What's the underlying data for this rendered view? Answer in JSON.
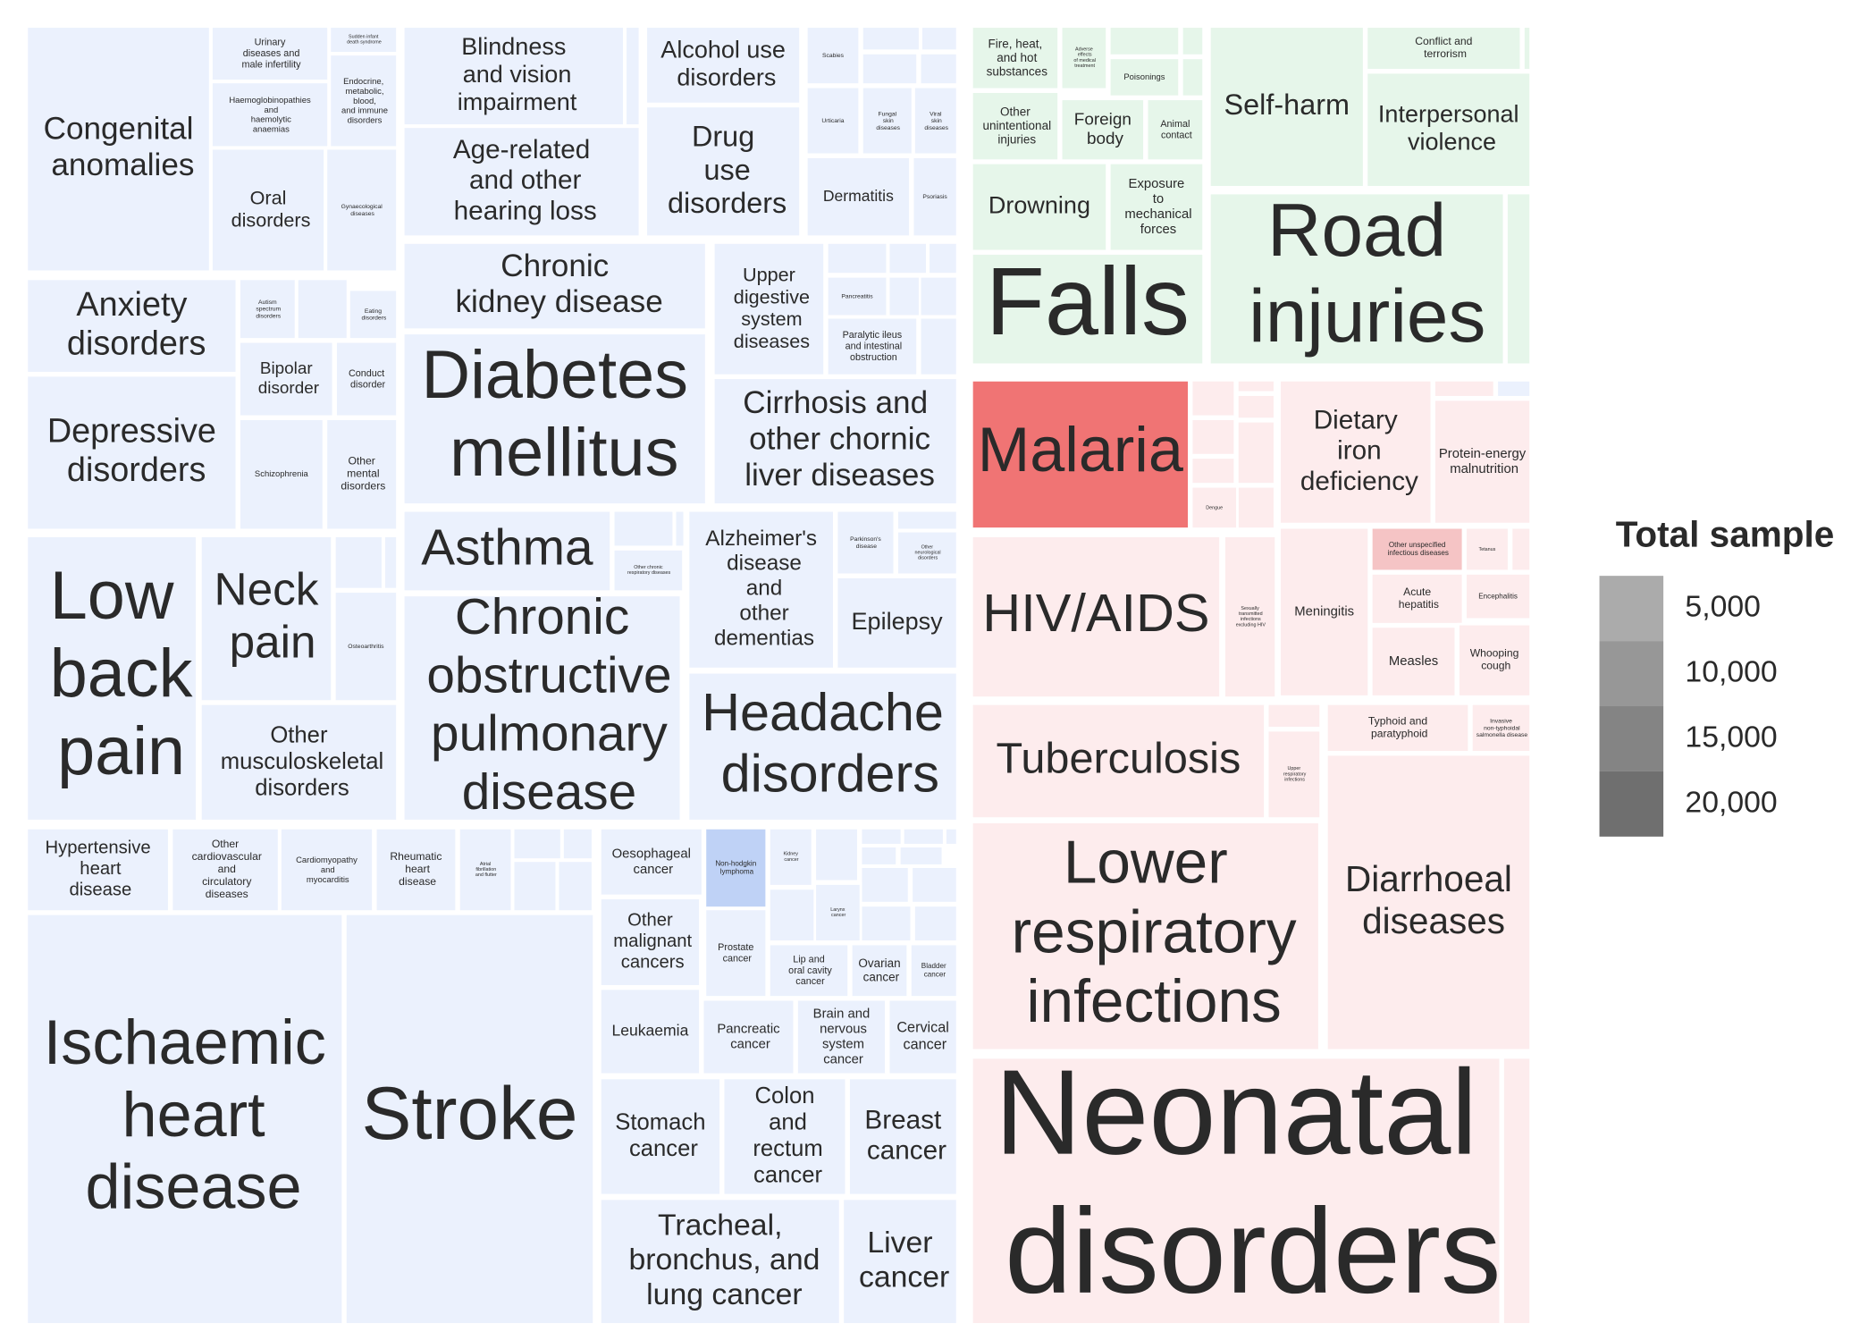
{
  "chart_data": {
    "type": "treemap",
    "palette": [
      "#ebf1fd",
      "#e6f6ea",
      "#fdeced"
    ],
    "cells": [
      {
        "label": "Congenital anomalies",
        "color": "#ebf1fd"
      },
      {
        "label": "Urinary diseases and male infertility",
        "color": "#ebf1fd"
      },
      {
        "label": "Sudden infant death syndrome",
        "color": "#ebf1fd"
      },
      {
        "label": "Haemoglobinopathies and haemolytic anaemias",
        "color": "#ebf1fd"
      },
      {
        "label": "Endocrine, metabolic, blood, and immune disorders",
        "color": "#ebf1fd"
      },
      {
        "label": "Oral disorders",
        "color": "#ebf1fd"
      },
      {
        "label": "Gynaecological diseases",
        "color": "#ebf1fd"
      },
      {
        "label": "Blindness and vision impairment",
        "color": "#ebf1fd"
      },
      {
        "label": "Age-related and other hearing loss",
        "color": "#ebf1fd"
      },
      {
        "label": "Alcohol use disorders",
        "color": "#ebf1fd"
      },
      {
        "label": "Drug use disorders",
        "color": "#ebf1fd"
      },
      {
        "label": "Scabies",
        "color": "#ebf1fd"
      },
      {
        "label": "Urticaria",
        "color": "#ebf1fd"
      },
      {
        "label": "Fungal skin diseases",
        "color": "#ebf1fd"
      },
      {
        "label": "Viral skin diseases",
        "color": "#ebf1fd"
      },
      {
        "label": "Dermatitis",
        "color": "#ebf1fd"
      },
      {
        "label": "Psoriasis",
        "color": "#ebf1fd"
      },
      {
        "label": "Anxiety disorders",
        "color": "#ebf1fd"
      },
      {
        "label": "Autism spectrum disorders",
        "color": "#ebf1fd"
      },
      {
        "label": "Eating disorders",
        "color": "#ebf1fd"
      },
      {
        "label": "Bipolar disorder",
        "color": "#ebf1fd"
      },
      {
        "label": "Conduct disorder",
        "color": "#ebf1fd"
      },
      {
        "label": "Depressive disorders",
        "color": "#ebf1fd"
      },
      {
        "label": "Schizophrenia",
        "color": "#ebf1fd"
      },
      {
        "label": "Other mental disorders",
        "color": "#ebf1fd"
      },
      {
        "label": "Chronic kidney disease",
        "color": "#ebf1fd"
      },
      {
        "label": "Diabetes mellitus",
        "color": "#ebf1fd"
      },
      {
        "label": "Upper digestive system diseases",
        "color": "#ebf1fd"
      },
      {
        "label": "Pancreatitis",
        "color": "#ebf1fd"
      },
      {
        "label": "Paralytic ileus and intestinal obstruction",
        "color": "#ebf1fd"
      },
      {
        "label": "Cirrhosis and other chornic liver diseases",
        "color": "#ebf1fd"
      },
      {
        "label": "Low back pain",
        "color": "#ebf1fd"
      },
      {
        "label": "Neck pain",
        "color": "#ebf1fd"
      },
      {
        "label": "Osteoarthritis",
        "color": "#ebf1fd"
      },
      {
        "label": "Other musculoskeletal disorders",
        "color": "#ebf1fd"
      },
      {
        "label": "Asthma",
        "color": "#ebf1fd"
      },
      {
        "label": "Other chronic respiratory diseases",
        "color": "#ebf1fd"
      },
      {
        "label": "Chronic obstructive pulmonary disease",
        "color": "#ebf1fd"
      },
      {
        "label": "Alzheimer's disease and other dementias",
        "color": "#ebf1fd"
      },
      {
        "label": "Parkinson's disease",
        "color": "#ebf1fd"
      },
      {
        "label": "Other neurological disorders",
        "color": "#ebf1fd"
      },
      {
        "label": "Epilepsy",
        "color": "#ebf1fd"
      },
      {
        "label": "Headache disorders",
        "color": "#ebf1fd"
      },
      {
        "label": "Hypertensive heart disease",
        "color": "#ebf1fd"
      },
      {
        "label": "Other cardiovascular and circulatory diseases",
        "color": "#ebf1fd"
      },
      {
        "label": "Cardiomyopathy and myocarditis",
        "color": "#ebf1fd"
      },
      {
        "label": "Rheumatic heart disease",
        "color": "#ebf1fd"
      },
      {
        "label": "Atrial fibrillation and flutter",
        "color": "#ebf1fd"
      },
      {
        "label": "Ischaemic heart disease",
        "color": "#ebf1fd"
      },
      {
        "label": "Stroke",
        "color": "#ebf1fd"
      },
      {
        "label": "Oesophageal cancer",
        "color": "#ebf1fd"
      },
      {
        "label": "Non-hodgkin lymphoma",
        "color": "#bfd2f6"
      },
      {
        "label": "Kidney cancer",
        "color": "#ebf1fd"
      },
      {
        "label": "Other malignant cancers",
        "color": "#ebf1fd"
      },
      {
        "label": "Prostate cancer",
        "color": "#ebf1fd"
      },
      {
        "label": "Larynx cancer",
        "color": "#ebf1fd"
      },
      {
        "label": "Lip and oral cavity cancer",
        "color": "#ebf1fd"
      },
      {
        "label": "Ovarian cancer",
        "color": "#ebf1fd"
      },
      {
        "label": "Bladder cancer",
        "color": "#ebf1fd"
      },
      {
        "label": "Leukaemia",
        "color": "#ebf1fd"
      },
      {
        "label": "Pancreatic cancer",
        "color": "#ebf1fd"
      },
      {
        "label": "Brain and nervous system cancer",
        "color": "#ebf1fd"
      },
      {
        "label": "Cervical cancer",
        "color": "#ebf1fd"
      },
      {
        "label": "Stomach cancer",
        "color": "#ebf1fd"
      },
      {
        "label": "Colon and rectum cancer",
        "color": "#ebf1fd"
      },
      {
        "label": "Breast cancer",
        "color": "#ebf1fd"
      },
      {
        "label": "Tracheal, bronchus, and lung cancer",
        "color": "#ebf1fd"
      },
      {
        "label": "Liver cancer",
        "color": "#ebf1fd"
      },
      {
        "label": "Fire, heat, and hot substances",
        "color": "#e6f6ea"
      },
      {
        "label": "Adverse effects of medical treatment",
        "color": "#e6f6ea"
      },
      {
        "label": "Poisonings",
        "color": "#e6f6ea"
      },
      {
        "label": "Other unintentional injuries",
        "color": "#e6f6ea"
      },
      {
        "label": "Foreign body",
        "color": "#e6f6ea"
      },
      {
        "label": "Animal contact",
        "color": "#e6f6ea"
      },
      {
        "label": "Drowning",
        "color": "#e6f6ea"
      },
      {
        "label": "Exposure to mechanical forces",
        "color": "#e6f6ea"
      },
      {
        "label": "Falls",
        "color": "#e6f6ea"
      },
      {
        "label": "Self-harm",
        "color": "#e6f6ea"
      },
      {
        "label": "Conflict and terrorism",
        "color": "#e6f6ea"
      },
      {
        "label": "Interpersonal violence",
        "color": "#e6f6ea"
      },
      {
        "label": "Road injuries",
        "color": "#e6f6ea"
      },
      {
        "label": "Malaria",
        "color": "#f07474"
      },
      {
        "label": "Dengue",
        "color": "#fdeced"
      },
      {
        "label": "Dietary iron deficiency",
        "color": "#fdeced"
      },
      {
        "label": "Protein-energy malnutrition",
        "color": "#fdeced"
      },
      {
        "label": "HIV/AIDS",
        "color": "#fdeced"
      },
      {
        "label": "Sexually transmitted infections excluding HIV",
        "color": "#fdeced"
      },
      {
        "label": "Meningitis",
        "color": "#fdeced"
      },
      {
        "label": "Other unspecified infectious diseases",
        "color": "#f5c4c5"
      },
      {
        "label": "Tetanus",
        "color": "#fdeced"
      },
      {
        "label": "Acute hepatitis",
        "color": "#fdeced"
      },
      {
        "label": "Encephalitis",
        "color": "#fdeced"
      },
      {
        "label": "Measles",
        "color": "#fdeced"
      },
      {
        "label": "Whooping cough",
        "color": "#fdeced"
      },
      {
        "label": "Tuberculosis",
        "color": "#fdeced"
      },
      {
        "label": "Upper respiratory infections",
        "color": "#fdeced"
      },
      {
        "label": "Typhoid and paratyphoid",
        "color": "#fdeced"
      },
      {
        "label": "Invasive non-typhoidal salmonella disease",
        "color": "#fdeced"
      },
      {
        "label": "Lower respiratory infections",
        "color": "#fdeced"
      },
      {
        "label": "Diarrhoeal diseases",
        "color": "#fdeced"
      },
      {
        "label": "Neonatal disorders",
        "color": "#fdeced"
      }
    ],
    "legend_title": "Total sample",
    "legend_ticks": [
      {
        "value": 5000,
        "label": "5,000"
      },
      {
        "value": 10000,
        "label": "10,000"
      },
      {
        "value": 15000,
        "label": "15,000"
      },
      {
        "value": 20000,
        "label": "20,000"
      }
    ],
    "legend_colors": [
      "#ababab",
      "#979797",
      "#848484",
      "#6f6f6f"
    ]
  }
}
